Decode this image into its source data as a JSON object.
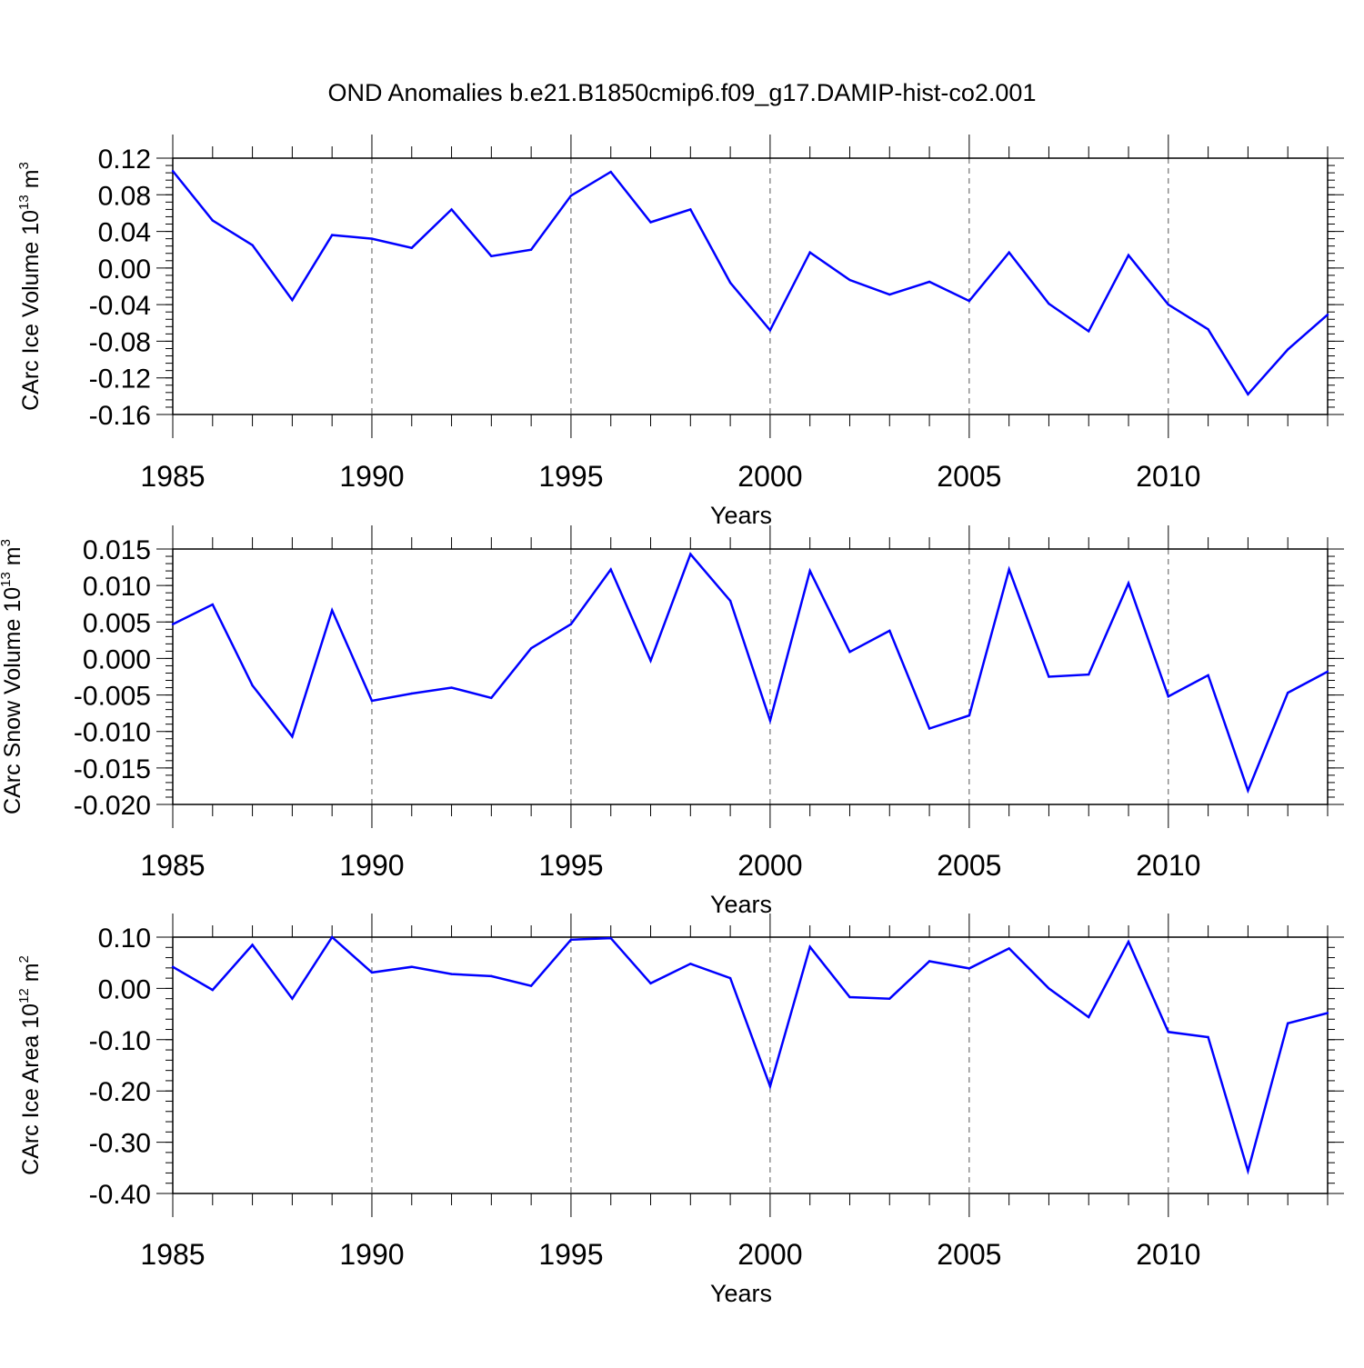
{
  "title": "OND Anomalies b.e21.B1850cmip6.f09_g17.DAMIP-hist-co2.001",
  "line_color": "#0000ff",
  "chart_data": [
    {
      "type": "line",
      "title": "",
      "xlabel": "Years",
      "ylabel": {
        "base": "CArc Ice Volume 10",
        "exp": "13",
        "unit": " m",
        "unit_exp": "3"
      },
      "xlim": [
        1985,
        2014
      ],
      "ylim": [
        -0.16,
        0.12
      ],
      "x_ticks": [
        1985,
        1990,
        1995,
        2000,
        2005,
        2010
      ],
      "x_tick_labels": [
        "1985",
        "1990",
        "1995",
        "2000",
        "2005",
        "2010"
      ],
      "y_ticks": [
        0.12,
        0.08,
        0.04,
        0.0,
        -0.04,
        -0.08,
        -0.12,
        -0.16
      ],
      "y_tick_labels": [
        "0.12",
        "0.08",
        "0.04",
        "0.00",
        "-0.04",
        "-0.08",
        "-0.12",
        "-0.16"
      ],
      "y_minor_step": 0.008,
      "grid": "vertical dashed at labeled years",
      "x": [
        1985,
        1986,
        1987,
        1988,
        1989,
        1990,
        1991,
        1992,
        1993,
        1994,
        1995,
        1996,
        1997,
        1998,
        1999,
        2000,
        2001,
        2002,
        2003,
        2004,
        2005,
        2006,
        2007,
        2008,
        2009,
        2010,
        2011,
        2012,
        2013,
        2014
      ],
      "values": [
        0.106,
        0.052,
        0.025,
        -0.035,
        0.036,
        0.032,
        0.022,
        0.064,
        0.013,
        0.02,
        0.079,
        0.105,
        0.05,
        0.064,
        -0.016,
        -0.068,
        0.017,
        -0.013,
        -0.029,
        -0.015,
        -0.036,
        0.017,
        -0.039,
        -0.069,
        0.014,
        -0.04,
        -0.067,
        -0.138,
        -0.089,
        -0.051
      ]
    },
    {
      "type": "line",
      "title": "",
      "xlabel": "Years",
      "ylabel": {
        "base": "CArc Snow Volume 10",
        "exp": "13",
        "unit": " m",
        "unit_exp": "3"
      },
      "xlim": [
        1985,
        2014
      ],
      "ylim": [
        -0.02,
        0.015
      ],
      "x_ticks": [
        1985,
        1990,
        1995,
        2000,
        2005,
        2010
      ],
      "x_tick_labels": [
        "1985",
        "1990",
        "1995",
        "2000",
        "2005",
        "2010"
      ],
      "y_ticks": [
        0.015,
        0.01,
        0.005,
        0.0,
        -0.005,
        -0.01,
        -0.015,
        -0.02
      ],
      "y_tick_labels": [
        "0.015",
        "0.010",
        "0.005",
        "0.000",
        "-0.005",
        "-0.010",
        "-0.015",
        "-0.020"
      ],
      "y_minor_step": 0.001,
      "grid": "vertical dashed at labeled years",
      "x": [
        1985,
        1986,
        1987,
        1988,
        1989,
        1990,
        1991,
        1992,
        1993,
        1994,
        1995,
        1996,
        1997,
        1998,
        1999,
        2000,
        2001,
        2002,
        2003,
        2004,
        2005,
        2006,
        2007,
        2008,
        2009,
        2010,
        2011,
        2012,
        2013,
        2014
      ],
      "values": [
        0.0047,
        0.0074,
        -0.0037,
        -0.0107,
        0.0066,
        -0.0058,
        -0.0048,
        -0.004,
        -0.0054,
        0.0014,
        0.0047,
        0.0122,
        -0.0003,
        0.0143,
        0.0079,
        -0.0085,
        0.012,
        0.0009,
        0.0038,
        -0.0096,
        -0.0078,
        0.0122,
        -0.0025,
        -0.0022,
        0.0103,
        -0.0052,
        -0.0023,
        -0.0181,
        -0.0047,
        -0.0018
      ]
    },
    {
      "type": "line",
      "title": "",
      "xlabel": "Years",
      "ylabel": {
        "base": "CArc Ice Area 10",
        "exp": "12",
        "unit": " m",
        "unit_exp": "2"
      },
      "xlim": [
        1985,
        2014
      ],
      "ylim": [
        -0.4,
        0.1
      ],
      "x_ticks": [
        1985,
        1990,
        1995,
        2000,
        2005,
        2010
      ],
      "x_tick_labels": [
        "1985",
        "1990",
        "1995",
        "2000",
        "2005",
        "2010"
      ],
      "y_ticks": [
        0.1,
        0.0,
        -0.1,
        -0.2,
        -0.3,
        -0.4
      ],
      "y_tick_labels": [
        "0.10",
        "0.00",
        "-0.10",
        "-0.20",
        "-0.30",
        "-0.40"
      ],
      "y_minor_step": 0.02,
      "grid": "vertical dashed at labeled years",
      "x": [
        1985,
        1986,
        1987,
        1988,
        1989,
        1990,
        1991,
        1992,
        1993,
        1994,
        1995,
        1996,
        1997,
        1998,
        1999,
        2000,
        2001,
        2002,
        2003,
        2004,
        2005,
        2006,
        2007,
        2008,
        2009,
        2010,
        2011,
        2012,
        2013,
        2014
      ],
      "values": [
        0.042,
        -0.003,
        0.085,
        -0.02,
        0.1,
        0.031,
        0.042,
        0.028,
        0.024,
        0.005,
        0.095,
        0.098,
        0.01,
        0.048,
        0.02,
        -0.191,
        0.081,
        -0.017,
        -0.02,
        0.053,
        0.039,
        0.078,
        0.0,
        -0.056,
        0.091,
        -0.085,
        -0.095,
        -0.356,
        -0.068,
        -0.048
      ]
    }
  ]
}
